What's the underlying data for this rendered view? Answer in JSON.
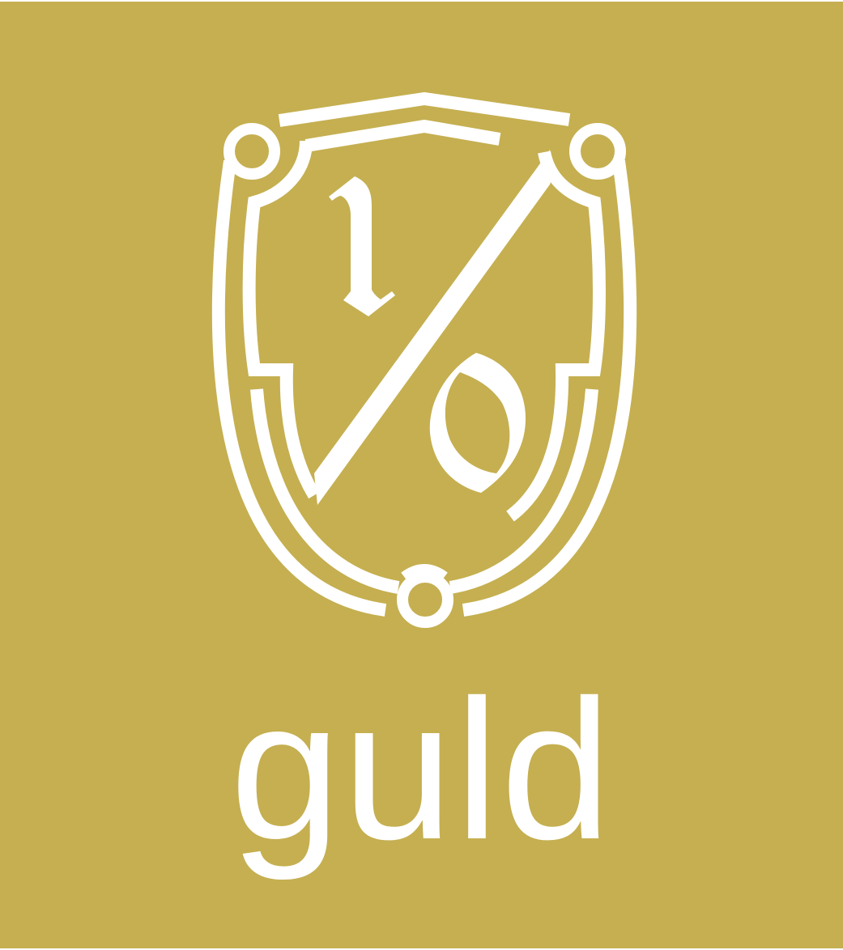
{
  "badge": {
    "label": "guld",
    "background_color": "#c5af50",
    "foreground_color": "#ffffff",
    "emblem_icon": "shield-crest-icon",
    "emblem_monogram": "l/o"
  }
}
